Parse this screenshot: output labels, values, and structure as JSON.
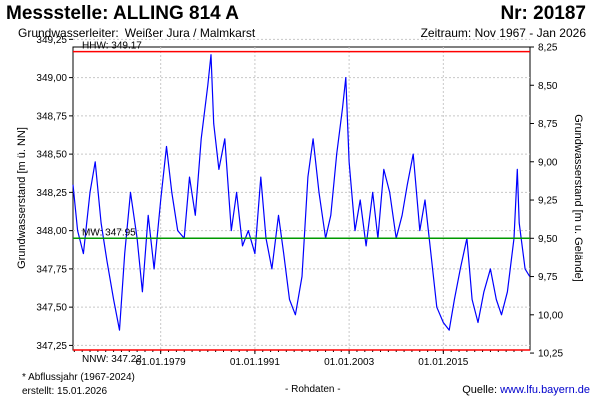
{
  "header": {
    "title": "Messstelle: ALLING 814 A",
    "number": "Nr: 20187",
    "aquifer_label": "Grundwasserleiter:",
    "aquifer_value": "Weißer Jura / Malmkarst",
    "period": "Zeitraum: Nov 1967 - Jan 2026"
  },
  "footer": {
    "note": "* Abflussjahr (1967-2024)",
    "created": "erstellt:  15.01.2026",
    "rawdata": "- Rohdaten -",
    "source_prefix": "Quelle: ",
    "source_link": "www.lfu.bayern.de"
  },
  "colors": {
    "series": "#0000ff",
    "hhw": "#ff0000",
    "nnw": "#ff0000",
    "mw": "#009900",
    "grid": "#c8c8c8",
    "link": "#0000cc"
  },
  "chart_data": {
    "type": "line",
    "y_left": {
      "label": "Grundwasserstand [m ü. NN]",
      "min": 347.22,
      "max": 349.2,
      "ticks": [
        "347,25",
        "347,50",
        "347,75",
        "348,00",
        "348,25",
        "348,50",
        "348,75",
        "349,00",
        "349,25"
      ]
    },
    "y_right": {
      "label": "Grundwasserstand [m u. Gelände]",
      "ticks": [
        "8,25",
        "8,50",
        "8,75",
        "9,00",
        "9,25",
        "9,50",
        "9,75",
        "10,00",
        "10,25"
      ]
    },
    "x_axis": {
      "start": "1967-11-01",
      "end": "2026-01-15",
      "ticks": [
        "01.01.1979",
        "01.01.1991",
        "01.01.2003",
        "01.01.2015"
      ]
    },
    "grid": true,
    "reference_lines": [
      {
        "label": "HHW: 349.17",
        "value": 349.17
      },
      {
        "label": "MW: 347.95",
        "value": 347.95
      },
      {
        "label": "NNW: 347.22",
        "value": 347.22
      }
    ],
    "series": [
      {
        "x": [
          "1967-11",
          "1968-06",
          "1969-03",
          "1970-01",
          "1970-09",
          "1971-06",
          "1972-03",
          "1973-01",
          "1973-10",
          "1974-06",
          "1975-03",
          "1976-01",
          "1976-09",
          "1977-06",
          "1978-03",
          "1979-01",
          "1979-10",
          "1980-06",
          "1981-03",
          "1982-01",
          "1982-09",
          "1983-06",
          "1984-03",
          "1985-01",
          "1985-06",
          "1985-10",
          "1986-06",
          "1987-03",
          "1988-01",
          "1988-09",
          "1989-06",
          "1990-03",
          "1991-01",
          "1991-10",
          "1992-06",
          "1993-03",
          "1994-01",
          "1994-09",
          "1995-06",
          "1996-03",
          "1997-01",
          "1997-10",
          "1998-06",
          "1999-03",
          "2000-01",
          "2000-09",
          "2001-06",
          "2002-03",
          "2002-08",
          "2003-01",
          "2003-10",
          "2004-06",
          "2005-03",
          "2006-01",
          "2006-09",
          "2007-06",
          "2008-03",
          "2009-01",
          "2009-10",
          "2010-06",
          "2011-03",
          "2012-01",
          "2012-09",
          "2013-06",
          "2014-03",
          "2015-01",
          "2015-10",
          "2016-06",
          "2017-03",
          "2018-01",
          "2018-09",
          "2019-06",
          "2020-03",
          "2021-01",
          "2021-10",
          "2022-06",
          "2023-03",
          "2024-01",
          "2024-06",
          "2024-09",
          "2025-06",
          "2026-01"
        ],
        "y": [
          348.3,
          348.0,
          347.85,
          348.25,
          348.45,
          348.05,
          347.8,
          347.55,
          347.35,
          347.85,
          348.25,
          347.95,
          347.6,
          348.1,
          347.75,
          348.2,
          348.55,
          348.25,
          348.0,
          347.95,
          348.35,
          348.1,
          348.6,
          348.95,
          349.15,
          348.7,
          348.4,
          348.6,
          348.0,
          348.25,
          347.9,
          348.0,
          347.85,
          348.35,
          347.95,
          347.75,
          348.1,
          347.85,
          347.55,
          347.45,
          347.7,
          348.35,
          348.6,
          348.25,
          347.95,
          348.1,
          348.5,
          348.8,
          349.0,
          348.45,
          348.0,
          348.2,
          347.9,
          348.25,
          347.95,
          348.4,
          348.25,
          347.95,
          348.1,
          348.3,
          348.5,
          348.0,
          348.2,
          347.85,
          347.5,
          347.4,
          347.35,
          347.55,
          347.75,
          347.95,
          347.55,
          347.4,
          347.6,
          347.75,
          347.55,
          347.45,
          347.6,
          347.95,
          348.4,
          348.05,
          347.75,
          347.7
        ]
      }
    ]
  }
}
